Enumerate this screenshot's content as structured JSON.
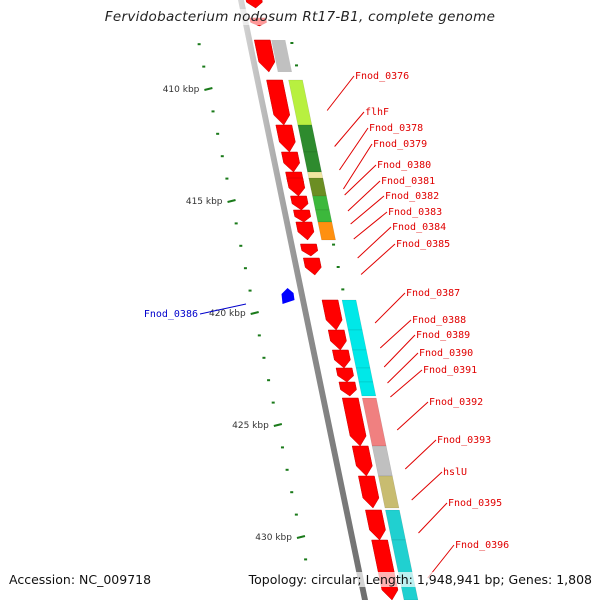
{
  "title": "Fervidobacterium nodosum Rt17-B1, complete genome",
  "footer": {
    "accession": "Accession: NC_009718",
    "summary": "Topology: circular; Length: 1,948,941 bp; Genes: 1,808"
  },
  "colors": {
    "forward_gene": "#ff0000",
    "reverse_gene": "#0000ff",
    "backbone": "#9a9a9a",
    "tick": "#1a7a1a",
    "label_forward": "#e00000",
    "label_reverse": "#0000cc"
  },
  "scale": {
    "major_ticks": [
      {
        "kbp": 410,
        "label": "410 kbp"
      },
      {
        "kbp": 415,
        "label": "415 kbp"
      },
      {
        "kbp": 420,
        "label": "420 kbp"
      },
      {
        "kbp": 425,
        "label": "425 kbp"
      },
      {
        "kbp": 430,
        "label": "430 kbp"
      }
    ]
  },
  "genes": [
    {
      "name": "Fnod_0376",
      "strand": "+",
      "cog_color": "#b8f040"
    },
    {
      "name": "flhF",
      "strand": "+",
      "cog_color": "#2e8b2e"
    },
    {
      "name": "Fnod_0378",
      "strand": "+",
      "cog_color": "#2e8b2e"
    },
    {
      "name": "Fnod_0379",
      "strand": "+",
      "cog_color": "#f0e6a0"
    },
    {
      "name": "Fnod_0380",
      "strand": "+",
      "cog_color": "#6b8e23"
    },
    {
      "name": "Fnod_0381",
      "strand": "+",
      "cog_color": "#3cb83c"
    },
    {
      "name": "Fnod_0382",
      "strand": "+",
      "cog_color": "#3cb83c"
    },
    {
      "name": "Fnod_0383",
      "strand": "+",
      "cog_color": "#ff9010"
    },
    {
      "name": "Fnod_0384",
      "strand": "+",
      "cog_color": "none"
    },
    {
      "name": "Fnod_0385",
      "strand": "+",
      "cog_color": "none"
    },
    {
      "name": "Fnod_0386",
      "strand": "-",
      "cog_color": "none"
    },
    {
      "name": "Fnod_0387",
      "strand": "+",
      "cog_color": "#00e8e8"
    },
    {
      "name": "Fnod_0388",
      "strand": "+",
      "cog_color": "#00e8e8"
    },
    {
      "name": "Fnod_0389",
      "strand": "+",
      "cog_color": "#00e8e8"
    },
    {
      "name": "Fnod_0390",
      "strand": "+",
      "cog_color": "#00e8e8"
    },
    {
      "name": "Fnod_0391",
      "strand": "+",
      "cog_color": "#00e8e8"
    },
    {
      "name": "Fnod_0392",
      "strand": "+",
      "cog_color": "#f08080"
    },
    {
      "name": "Fnod_0393",
      "strand": "+",
      "cog_color": "#c0c0c0"
    },
    {
      "name": "hslU",
      "strand": "+",
      "cog_color": "#c8bc70"
    },
    {
      "name": "Fnod_0395",
      "strand": "+",
      "cog_color": "#20d0d0"
    },
    {
      "name": "Fnod_0396",
      "strand": "+",
      "cog_color": "#20d0d0"
    }
  ]
}
